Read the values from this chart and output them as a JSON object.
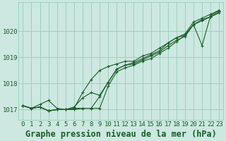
{
  "background_color": "#cce8e0",
  "plot_bg_color": "#cce8e0",
  "grid_color": "#99ccbb",
  "line_color": "#1a5c2a",
  "marker_color": "#1a5c2a",
  "xlabel": "Graphe pression niveau de la mer (hPa)",
  "xlim": [
    -0.5,
    23.5
  ],
  "ylim": [
    1016.6,
    1021.1
  ],
  "yticks": [
    1017,
    1018,
    1019,
    1020
  ],
  "xticks": [
    0,
    1,
    2,
    3,
    4,
    5,
    6,
    7,
    8,
    9,
    10,
    11,
    12,
    13,
    14,
    15,
    16,
    17,
    18,
    19,
    20,
    21,
    22,
    23
  ],
  "series": [
    [
      1017.15,
      1017.05,
      1017.1,
      1016.95,
      1017.0,
      1017.0,
      1017.05,
      1017.05,
      1017.05,
      1017.5,
      1018.05,
      1018.55,
      1018.7,
      1018.75,
      1018.9,
      1019.05,
      1019.2,
      1019.45,
      1019.65,
      1019.8,
      1020.25,
      1020.45,
      1020.55,
      1020.7
    ],
    [
      1017.15,
      1017.05,
      1017.1,
      1016.95,
      1017.0,
      1017.0,
      1017.05,
      1017.65,
      1018.15,
      1018.5,
      1018.65,
      1018.75,
      1018.85,
      1018.85,
      1019.05,
      1019.15,
      1019.35,
      1019.55,
      1019.75,
      1019.9,
      1020.35,
      1020.5,
      1020.65,
      1020.8
    ],
    [
      1017.15,
      1017.05,
      1017.1,
      1016.95,
      1017.0,
      1017.0,
      1017.1,
      1017.45,
      1017.65,
      1017.55,
      1018.05,
      1018.55,
      1018.7,
      1018.8,
      1018.95,
      1019.1,
      1019.25,
      1019.55,
      1019.75,
      1019.85,
      1020.25,
      1019.45,
      1020.6,
      1020.8
    ],
    [
      1017.15,
      1017.05,
      1017.2,
      1017.35,
      1017.05,
      1017.0,
      1017.0,
      1017.05,
      1017.05,
      1017.05,
      1017.9,
      1018.45,
      1018.6,
      1018.7,
      1018.85,
      1018.95,
      1019.15,
      1019.35,
      1019.6,
      1019.85,
      1020.25,
      1020.4,
      1020.55,
      1020.75
    ]
  ],
  "title_fontsize": 8.5,
  "tick_fontsize": 6.5
}
